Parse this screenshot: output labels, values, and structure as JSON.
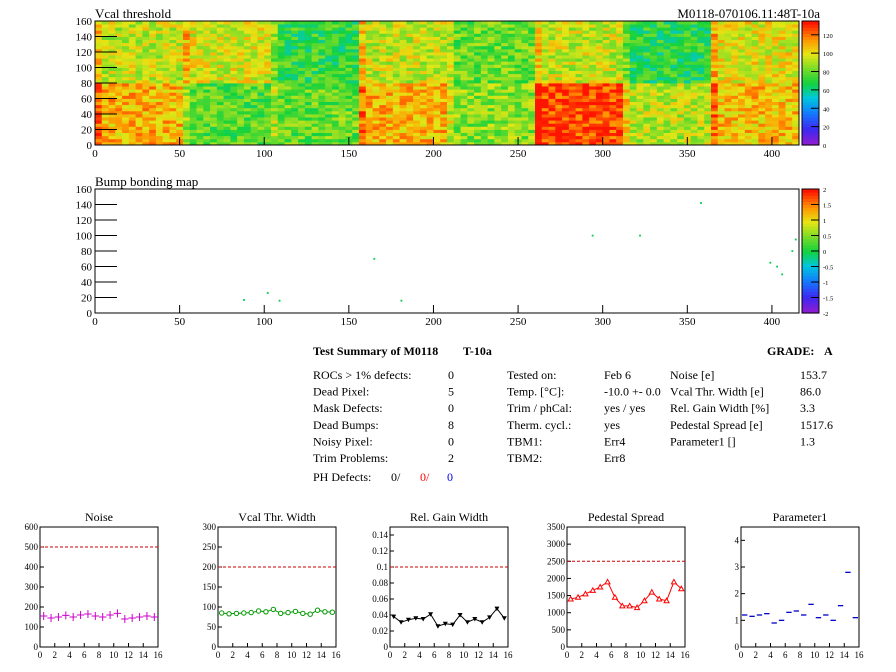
{
  "header": {
    "map1_title": "Vcal threshold",
    "map1_module": "M0118-070106.11:48T-10a",
    "map2_title": "Bump bonding map"
  },
  "summary": {
    "title": "Test Summary of M0118",
    "test_id": "T-10a",
    "grade_label": "GRADE:",
    "grade": "A",
    "left_rows": [
      {
        "label": "ROCs > 1% defects:",
        "value": "0"
      },
      {
        "label": "Dead Pixel:",
        "value": "5"
      },
      {
        "label": "Mask Defects:",
        "value": "0"
      },
      {
        "label": "Dead Bumps:",
        "value": "8"
      },
      {
        "label": "Noisy Pixel:",
        "value": "0"
      },
      {
        "label": "Trim Problems:",
        "value": "2"
      }
    ],
    "ph_defects": {
      "label": "PH Defects:",
      "v1": "0/",
      "v2": "0/",
      "v3": "0",
      "color2": "#ff0000",
      "color3": "#0000ff"
    },
    "mid_rows": [
      {
        "label": "Tested on:",
        "value": "Feb 6"
      },
      {
        "label": "Temp. [°C]:",
        "value": "-10.0 +- 0.0"
      },
      {
        "label": "Trim / phCal:",
        "value": "yes / yes"
      },
      {
        "label": "Therm. cycl.:",
        "value": "yes"
      },
      {
        "label": "TBM1:",
        "value": "Err4"
      },
      {
        "label": "TBM2:",
        "value": "Err8"
      }
    ],
    "right_rows": [
      {
        "label": "Noise [e]",
        "value": "153.7"
      },
      {
        "label": "Vcal Thr. Width [e]",
        "value": "86.0"
      },
      {
        "label": "Rel. Gain Width [%]",
        "value": "3.3"
      },
      {
        "label": "Pedestal Spread [e]",
        "value": "1517.6"
      },
      {
        "label": "Parameter1 []",
        "value": "1.3"
      }
    ]
  },
  "chart_data": [
    {
      "type": "heatmap",
      "title": "Vcal threshold",
      "xlim": [
        0,
        416
      ],
      "ylim": [
        0,
        160
      ],
      "x_ticks": [
        0,
        50,
        100,
        150,
        200,
        250,
        300,
        350,
        400
      ],
      "y_ticks": [
        0,
        20,
        40,
        60,
        80,
        100,
        120,
        140,
        160
      ],
      "colorbar_ticks": [
        0,
        20,
        40,
        60,
        80,
        100,
        120
      ],
      "zlim": [
        0,
        135
      ],
      "roc_means_top": [
        95,
        98,
        72,
        95,
        80,
        95,
        70,
        100
      ],
      "roc_means_bottom": [
        110,
        78,
        80,
        110,
        85,
        128,
        92,
        108
      ]
    },
    {
      "type": "scatter",
      "title": "Bump bonding map",
      "xlim": [
        0,
        416
      ],
      "ylim": [
        0,
        160
      ],
      "x_ticks": [
        0,
        50,
        100,
        150,
        200,
        250,
        300,
        350,
        400
      ],
      "y_ticks": [
        0,
        20,
        40,
        60,
        80,
        100,
        120,
        140,
        160
      ],
      "colorbar_ticks": [
        2,
        1.5,
        1,
        0.5,
        0,
        -0.5,
        -1,
        -1.5,
        -2
      ],
      "zlim": [
        -2,
        2
      ],
      "points": [
        [
          88,
          17
        ],
        [
          102,
          26
        ],
        [
          109,
          16
        ],
        [
          165,
          70
        ],
        [
          181,
          16
        ],
        [
          294,
          100
        ],
        [
          322,
          100
        ],
        [
          358,
          142
        ],
        [
          399,
          65
        ],
        [
          403,
          60
        ],
        [
          406,
          50
        ],
        [
          412,
          80
        ],
        [
          414,
          95
        ]
      ],
      "point_color": "#00cc44"
    },
    {
      "type": "line",
      "title": "Noise",
      "xlim": [
        0,
        16
      ],
      "ylim": [
        0,
        600
      ],
      "x_ticks": [
        0,
        2,
        4,
        6,
        8,
        10,
        12,
        14,
        16
      ],
      "y_ticks": [
        0,
        100,
        200,
        300,
        400,
        500,
        600
      ],
      "reference": 500,
      "color": "#cc00cc",
      "marker": "cross",
      "connect": false,
      "values": [
        155,
        145,
        150,
        158,
        150,
        160,
        165,
        155,
        150,
        160,
        168,
        140,
        145,
        150,
        155,
        150
      ]
    },
    {
      "type": "line",
      "title": "Vcal Thr. Width",
      "xlim": [
        0,
        16
      ],
      "ylim": [
        0,
        300
      ],
      "x_ticks": [
        0,
        2,
        4,
        6,
        8,
        10,
        12,
        14,
        16
      ],
      "y_ticks": [
        0,
        50,
        100,
        150,
        200,
        250,
        300
      ],
      "reference": 200,
      "color": "#009900",
      "marker": "circle",
      "connect": true,
      "values": [
        85,
        83,
        84,
        85,
        86,
        90,
        88,
        94,
        84,
        86,
        89,
        84,
        82,
        92,
        88,
        87
      ]
    },
    {
      "type": "line",
      "title": "Rel. Gain Width",
      "xlim": [
        0,
        16
      ],
      "ylim": [
        0,
        0.15
      ],
      "x_ticks": [
        0,
        2,
        4,
        6,
        8,
        10,
        12,
        14,
        16
      ],
      "y_ticks": [
        0,
        0.02,
        0.04,
        0.06,
        0.08,
        0.1,
        0.12,
        0.14
      ],
      "y_tick_labels": [
        "0",
        "0.02",
        "0.04",
        "0.06",
        "0.08",
        "0.1",
        "0.12",
        "0.14"
      ],
      "reference": 0.1,
      "color": "#000000",
      "marker": "triangle-down",
      "connect": true,
      "values": [
        0.038,
        0.031,
        0.034,
        0.036,
        0.035,
        0.041,
        0.026,
        0.029,
        0.028,
        0.04,
        0.031,
        0.035,
        0.031,
        0.037,
        0.048,
        0.036
      ]
    },
    {
      "type": "line",
      "title": "Pedestal Spread",
      "xlim": [
        0,
        16
      ],
      "ylim": [
        0,
        3500
      ],
      "x_ticks": [
        0,
        2,
        4,
        6,
        8,
        10,
        12,
        14,
        16
      ],
      "y_ticks": [
        0,
        500,
        1000,
        1500,
        2000,
        2500,
        3000,
        3500
      ],
      "reference": 2500,
      "color": "#ff0000",
      "marker": "triangle-up",
      "connect": true,
      "values": [
        1400,
        1450,
        1550,
        1650,
        1750,
        1900,
        1450,
        1200,
        1200,
        1150,
        1350,
        1600,
        1400,
        1350,
        1900,
        1700
      ]
    },
    {
      "type": "line",
      "title": "Parameter1",
      "xlim": [
        0,
        16
      ],
      "ylim": [
        0,
        4.5
      ],
      "x_ticks": [
        0,
        2,
        4,
        6,
        8,
        10,
        12,
        14,
        16
      ],
      "y_ticks": [
        0,
        1,
        2,
        3,
        4
      ],
      "reference": null,
      "color": "#0000cc",
      "marker": "dash",
      "connect": false,
      "values": [
        1.2,
        1.15,
        1.2,
        1.25,
        0.9,
        1.0,
        1.3,
        1.35,
        1.2,
        1.6,
        1.1,
        1.2,
        1.0,
        1.55,
        2.8,
        1.1
      ]
    }
  ]
}
